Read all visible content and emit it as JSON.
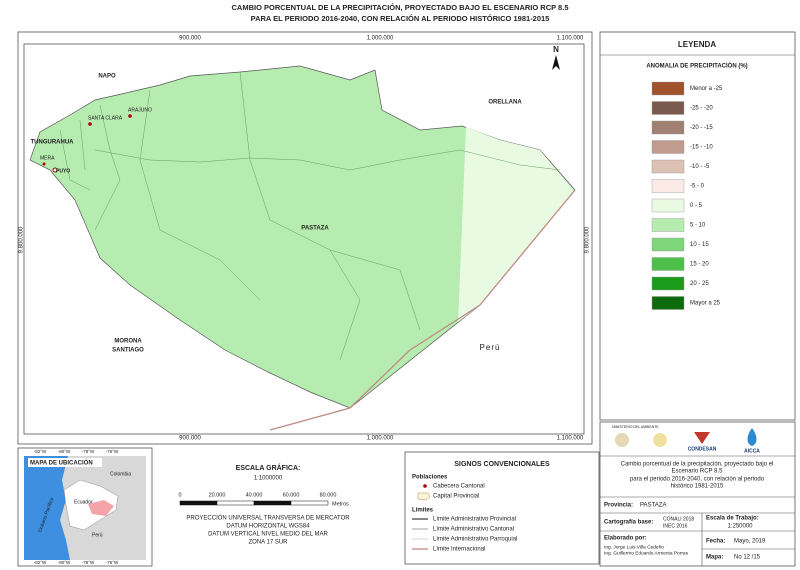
{
  "title": [
    "CAMBIO PORCENTUAL DE LA PRECIPITACIÓN, PROYECTADO BAJO EL ESCENARIO RCP 8.5",
    "PARA EL PERIODO 2016-2040, CON RELACIÓN AL PERIODO HISTÓRICO 1981-2015"
  ],
  "map": {
    "grid_top": [
      "900.000",
      "1.000.000",
      "1.100.000"
    ],
    "grid_bottom": [
      "900.000",
      "1.000.000",
      "1.100.000"
    ],
    "grid_left": "9.800.000",
    "grid_right": "9.800.000",
    "north": "N",
    "regions": [
      "NAPO",
      "ORELLANA",
      "TUNGURAHUA",
      "PASTAZA",
      "MORONA",
      "SANTIAGO",
      "Perú"
    ],
    "towns": [
      "ARAJUNO",
      "SANTA CLARA",
      "MERA",
      "PUYO"
    ]
  },
  "legend": {
    "title": "LEYENDA",
    "subtitle": "ANOMALIA DE PRECIPITACIÓN (%)",
    "items": [
      {
        "label": "Menor a -25",
        "color": "#a0522d"
      },
      {
        "label": "-25 - -20",
        "color": "#7b5a4e"
      },
      {
        "label": "-20 - -15",
        "color": "#a17f73"
      },
      {
        "label": "-15 - -10",
        "color": "#c09c8f"
      },
      {
        "label": "-10 - -5",
        "color": "#dcc0b4"
      },
      {
        "label": "-5 - 0",
        "color": "#fbeae5"
      },
      {
        "label": "0 - 5",
        "color": "#e9fae3"
      },
      {
        "label": "5 - 10",
        "color": "#b6ecb0"
      },
      {
        "label": "10 - 15",
        "color": "#7fd67a"
      },
      {
        "label": "15 - 20",
        "color": "#4cc04a"
      },
      {
        "label": "20 - 25",
        "color": "#1a9c1a"
      },
      {
        "label": "Mayor a 25",
        "color": "#0d6b0d"
      }
    ]
  },
  "location": {
    "title": "MAPA DE UBICACIÓN",
    "ticks_top": [
      "-82°W",
      "-80°W",
      "-78°W",
      "-76°W"
    ],
    "ticks_bottom": [
      "-82°W",
      "-80°W",
      "-78°W",
      "-76°W"
    ],
    "labels": [
      "Colombia",
      "Ecuador",
      "Perú",
      "Océano Pacífico"
    ]
  },
  "scale": {
    "title": "ESCALA GRÁFICA:",
    "ratio": "1:1000000",
    "ticks": [
      "0",
      "20.000",
      "40.000",
      "60.000",
      "80.000"
    ],
    "unit": "Metros",
    "projection": [
      "PROYECCIÓN UNIVERSAL TRANSVERSA DE MERCATOR",
      "DATUM HORIZONTAL WGS84",
      "DATUM VERTICAL NIVEL MEDIO DEL MAR",
      "ZONA 17 SUR"
    ]
  },
  "signs": {
    "title": "SIGNOS CONVENCIONALES",
    "populations": "Poblaciones",
    "population_items": [
      "Cabecera Cantonal",
      "Capital Provincial"
    ],
    "limits": "Límites",
    "limit_items": [
      "Límite Administrativo Provincial",
      "Límite Administrativo Cantonal",
      "Límite Administrativo Parroquial",
      "Límite Internacional"
    ]
  },
  "info": {
    "logos": [
      "MINISTERIO DEL AMBIENTE",
      "CONDESAN",
      "AICCA"
    ],
    "description": [
      "Cambio porcentual de la precipitación, proyectado bajo el",
      "Escenario RCP 8.5",
      "para el periodo 2016-2040, con relación al periodo",
      "histórico 1981-2015"
    ],
    "province_label": "Provincia:",
    "province": "PASTAZA",
    "base_label": "Cartografía base:",
    "base": [
      "CONALI 2018",
      "INEC 2016"
    ],
    "scale_label": "Escala de Trabajo:",
    "scale": "1:250000",
    "author_label": "Elaborado por:",
    "authors": [
      "Ing. Jorge Luis Villa Cedeño",
      "Ing. Guillermo Eduardo Armenta Porras"
    ],
    "date_label": "Fecha:",
    "date": "Mayo, 2019",
    "map_label": "Mapa:",
    "map": "No 12 /15"
  }
}
